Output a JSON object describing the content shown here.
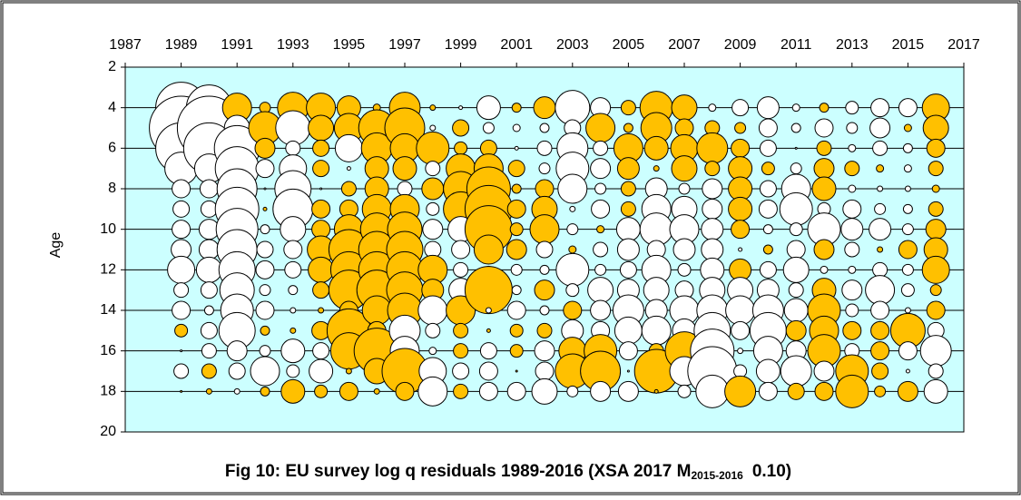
{
  "chart_data": {
    "type": "bubble",
    "title": "Fig 10: EU survey log q residuals 1989-2016 (XSA 2017 M",
    "title_subscript": "2015-2016",
    "title_suffix": "0.10)",
    "y_label": "Age",
    "x": [
      1989,
      1990,
      1991,
      1992,
      1993,
      1994,
      1995,
      1996,
      1997,
      1998,
      1999,
      2000,
      2001,
      2002,
      2003,
      2004,
      2005,
      2006,
      2007,
      2008,
      2009,
      2010,
      2011,
      2012,
      2013,
      2014,
      2015,
      2016
    ],
    "y": [
      4,
      5,
      6,
      7,
      8,
      9,
      10,
      11,
      12,
      13,
      14,
      15,
      16,
      17,
      18
    ],
    "values": [
      [
        -2.8,
        -3.5,
        -2.8,
        -1.8,
        -1.0,
        -0.9,
        -1.0,
        -1.1,
        -1.5,
        -0.8,
        -1.0,
        0.7,
        -0.1,
        -0.8,
        0.1
      ],
      [
        -2.5,
        -3.5,
        -2.8,
        -1.6,
        -1.0,
        -0.9,
        -1.1,
        -1.1,
        -1.4,
        -0.9,
        -0.5,
        -0.9,
        -0.8,
        0.8,
        0.3
      ],
      [
        1.6,
        -1.4,
        -2.5,
        -2.4,
        -2.2,
        -2.4,
        -2.3,
        -2.2,
        -2.0,
        -1.9,
        -1.8,
        -2.0,
        -1.1,
        -0.9,
        -0.3
      ],
      [
        0.6,
        1.8,
        1.1,
        -1.0,
        -0.1,
        0.2,
        -0.5,
        -0.9,
        -1.0,
        -0.6,
        -1.0,
        0.5,
        -0.6,
        -1.6,
        0.5
      ],
      [
        1.7,
        -1.9,
        -0.8,
        -1.5,
        -2.0,
        -2.2,
        -1.4,
        -1.0,
        -0.9,
        -0.5,
        -0.3,
        0.3,
        -1.3,
        -0.7,
        1.3
      ],
      [
        1.6,
        1.4,
        0.9,
        0.9,
        -0.1,
        1.0,
        1.0,
        1.5,
        1.4,
        0.9,
        0.3,
        1.0,
        -0.9,
        -1.3,
        0.7
      ],
      [
        1.3,
        1.6,
        -1.5,
        -0.2,
        0.8,
        1.0,
        1.6,
        2.2,
        2.0,
        2.2,
        1.0,
        2.4,
        2.0,
        0.3,
        1.0
      ],
      [
        0.4,
        2.0,
        1.7,
        1.3,
        1.3,
        1.6,
        1.8,
        2.0,
        2.0,
        2.2,
        1.6,
        1.0,
        2.5,
        1.4,
        0.3
      ],
      [
        1.7,
        2.2,
        1.6,
        1.3,
        -0.8,
        1.6,
        1.9,
        2.0,
        2.0,
        2.0,
        1.9,
        -1.7,
        -1.6,
        2.5,
        1.0
      ],
      [
        0.3,
        -0.3,
        1.8,
        -0.8,
        1.2,
        -0.7,
        -1.1,
        -0.9,
        1.6,
        1.2,
        -1.6,
        -0.8,
        -0.4,
        -1.5,
        -1.6
      ],
      [
        -0.2,
        0.9,
        0.7,
        1.6,
        1.9,
        1.9,
        -1.4,
        -1.0,
        -0.8,
        -1.3,
        1.6,
        0.8,
        0.8,
        -0.9,
        0.8
      ],
      [
        -1.3,
        -0.6,
        0.9,
        1.6,
        2.4,
        2.6,
        2.6,
        1.6,
        0.4,
        2.6,
        -0.3,
        0.2,
        -0.9,
        -1.0,
        -1.0
      ],
      [
        0.5,
        -0.4,
        -0.2,
        0.9,
        0.5,
        1.0,
        0.7,
        1.1,
        -0.6,
        -0.5,
        -1.0,
        0.7,
        0.7,
        0.1,
        -1.0
      ],
      [
        1.2,
        -0.5,
        -0.8,
        -0.6,
        1.0,
        1.4,
        1.6,
        -0.9,
        -0.5,
        1.1,
        -0.5,
        0.8,
        -1.1,
        -1.0,
        -1.4
      ],
      [
        -1.9,
        -0.9,
        -1.7,
        -1.8,
        -1.6,
        -0.3,
        -0.6,
        0.4,
        -1.8,
        -0.7,
        1.0,
        -1.2,
        1.5,
        1.9,
        -0.6
      ],
      [
        -1.1,
        1.6,
        -0.8,
        -1.1,
        -0.6,
        -1.0,
        0.4,
        -0.8,
        -0.6,
        -1.4,
        -1.1,
        -1.0,
        1.8,
        2.2,
        -1.1
      ],
      [
        0.8,
        0.5,
        1.6,
        1.2,
        0.8,
        0.8,
        -1.3,
        -1.2,
        -0.9,
        -1.2,
        -1.7,
        -1.5,
        -1.0,
        -0.1,
        -1.1
      ],
      [
        1.8,
        1.7,
        1.3,
        0.3,
        -1.2,
        -1.6,
        -1.8,
        -1.0,
        -1.6,
        -1.4,
        -1.2,
        -1.6,
        0.8,
        2.4,
        0.2
      ],
      [
        1.4,
        1.0,
        1.5,
        1.4,
        -0.6,
        -1.4,
        -1.6,
        -1.2,
        -0.7,
        -1.0,
        -1.6,
        -1.3,
        2.1,
        -1.6,
        -0.7
      ],
      [
        -0.4,
        0.8,
        1.7,
        0.8,
        -1.1,
        -1.1,
        -1.2,
        -1.2,
        -1.3,
        -1.4,
        -1.7,
        -2.0,
        -2.4,
        -2.7,
        -1.8
      ],
      [
        -0.9,
        0.6,
        1.0,
        1.3,
        1.3,
        1.3,
        1.0,
        -0.2,
        1.2,
        -1.4,
        -1.6,
        -1.0,
        -0.3,
        -0.7,
        1.7
      ],
      [
        -1.2,
        -1.0,
        -0.9,
        0.7,
        -0.9,
        -1.0,
        -0.5,
        0.5,
        -0.9,
        -1.2,
        -1.7,
        -2.0,
        -1.6,
        -1.3,
        -1.0
      ],
      [
        -0.4,
        -0.5,
        -0.1,
        -0.6,
        -1.6,
        -1.8,
        -0.7,
        -1.0,
        -1.4,
        -0.8,
        -1.3,
        1.1,
        -1.1,
        -1.7,
        0.9
      ],
      [
        0.5,
        -1.0,
        0.8,
        1.1,
        1.3,
        -0.7,
        -1.8,
        1.1,
        -0.4,
        1.3,
        1.8,
        1.6,
        1.8,
        -1.1,
        1.0
      ],
      [
        -0.7,
        -0.6,
        -0.4,
        0.8,
        -0.4,
        -1.0,
        -1.2,
        -0.8,
        -0.4,
        -1.1,
        -0.7,
        1.0,
        -0.8,
        1.8,
        1.8
      ],
      [
        -1.0,
        -1.1,
        -0.8,
        0.4,
        -0.3,
        -0.6,
        -1.2,
        0.3,
        -0.8,
        -1.6,
        -1.0,
        1.0,
        1.0,
        0.9,
        0.6
      ],
      [
        -1.0,
        0.4,
        -0.5,
        -0.4,
        -0.3,
        -0.5,
        -0.6,
        1.0,
        -0.6,
        -0.7,
        -0.3,
        1.9,
        -1.0,
        -0.2,
        1.1
      ],
      [
        1.5,
        1.4,
        1.0,
        0.8,
        0.4,
        0.8,
        1.1,
        1.3,
        1.5,
        0.6,
        1.0,
        -0.9,
        -1.7,
        -0.8,
        -1.3
      ]
    ],
    "positive_color": "#ffc000",
    "negative_color": "#ffffff",
    "plot_background": "#ccffff",
    "xlim": [
      1987,
      2017
    ],
    "xticks": [
      1987,
      1989,
      1991,
      1993,
      1995,
      1997,
      1999,
      2001,
      2003,
      2005,
      2007,
      2009,
      2011,
      2013,
      2015,
      2017
    ],
    "ylim": [
      2,
      20
    ],
    "yticks": [
      2,
      4,
      6,
      8,
      10,
      12,
      14,
      16,
      18,
      20
    ],
    "y_inverted": true,
    "x_axis_position": "top",
    "grid": true
  }
}
